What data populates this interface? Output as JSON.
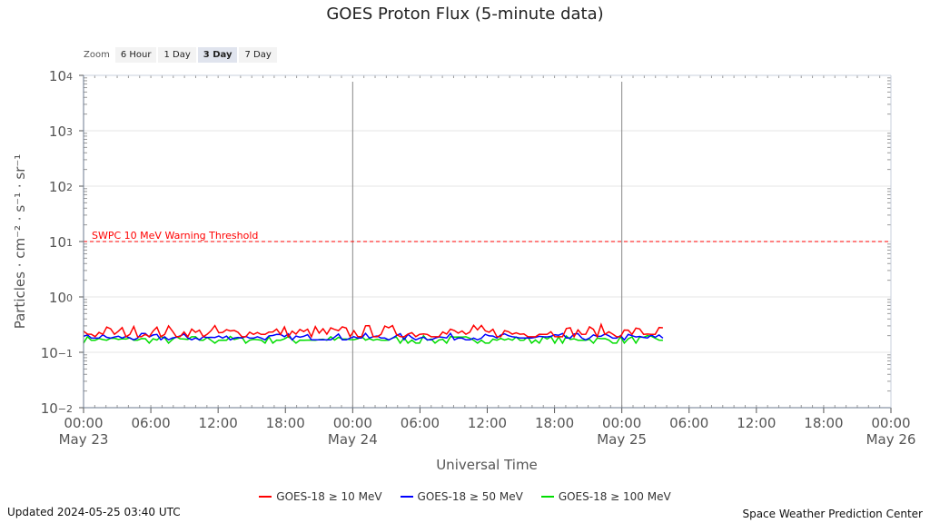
{
  "chart_data": {
    "type": "line",
    "title": "GOES Proton Flux (5-minute data)",
    "xlabel": "Universal Time",
    "ylabel": "Particles · cm⁻² · s⁻¹ · sr⁻¹",
    "y_scale": "log",
    "ylim": [
      0.01,
      10000
    ],
    "y_ticks": [
      {
        "base": "10",
        "exp": "4"
      },
      {
        "base": "10",
        "exp": "3"
      },
      {
        "base": "10",
        "exp": "2"
      },
      {
        "base": "10",
        "exp": "1"
      },
      {
        "base": "10",
        "exp": "0"
      },
      {
        "base": "10",
        "exp": "−1"
      },
      {
        "base": "10",
        "exp": "−2"
      }
    ],
    "xlim": [
      "2024-05-23 00:00",
      "2024-05-26 00:00"
    ],
    "x_ticks": [
      {
        "time": "00:00",
        "date": "May 23"
      },
      {
        "time": "06:00",
        "date": ""
      },
      {
        "time": "12:00",
        "date": ""
      },
      {
        "time": "18:00",
        "date": ""
      },
      {
        "time": "00:00",
        "date": "May 24"
      },
      {
        "time": "06:00",
        "date": ""
      },
      {
        "time": "12:00",
        "date": ""
      },
      {
        "time": "18:00",
        "date": ""
      },
      {
        "time": "00:00",
        "date": "May 25"
      },
      {
        "time": "06:00",
        "date": ""
      },
      {
        "time": "12:00",
        "date": ""
      },
      {
        "time": "18:00",
        "date": ""
      },
      {
        "time": "00:00",
        "date": "May 26"
      }
    ],
    "day_markers": [
      "2024-05-24 00:00",
      "2024-05-25 00:00"
    ],
    "threshold": {
      "label": "SWPC 10 MeV Warning Threshold",
      "value": 10,
      "color": "#ff0000"
    },
    "data_end": "2024-05-25 03:40",
    "series": [
      {
        "name": "GOES-18 ≥ 10 MeV",
        "color": "#ff0000",
        "typical_value": 0.21,
        "range": [
          0.17,
          0.32
        ]
      },
      {
        "name": "GOES-18 ≥ 50 MeV",
        "color": "#0000ff",
        "typical_value": 0.18,
        "range": [
          0.15,
          0.22
        ]
      },
      {
        "name": "GOES-18 ≥ 100 MeV",
        "color": "#00dd00",
        "typical_value": 0.165,
        "range": [
          0.13,
          0.2
        ]
      }
    ],
    "grid": true,
    "legend_position": "bottom"
  },
  "zoom": {
    "label": "Zoom",
    "options": [
      "6 Hour",
      "1 Day",
      "3 Day",
      "7 Day"
    ],
    "selected": "3 Day"
  },
  "footer": {
    "updated": "Updated 2024-05-25 03:40 UTC",
    "credit": "Space Weather Prediction Center"
  }
}
